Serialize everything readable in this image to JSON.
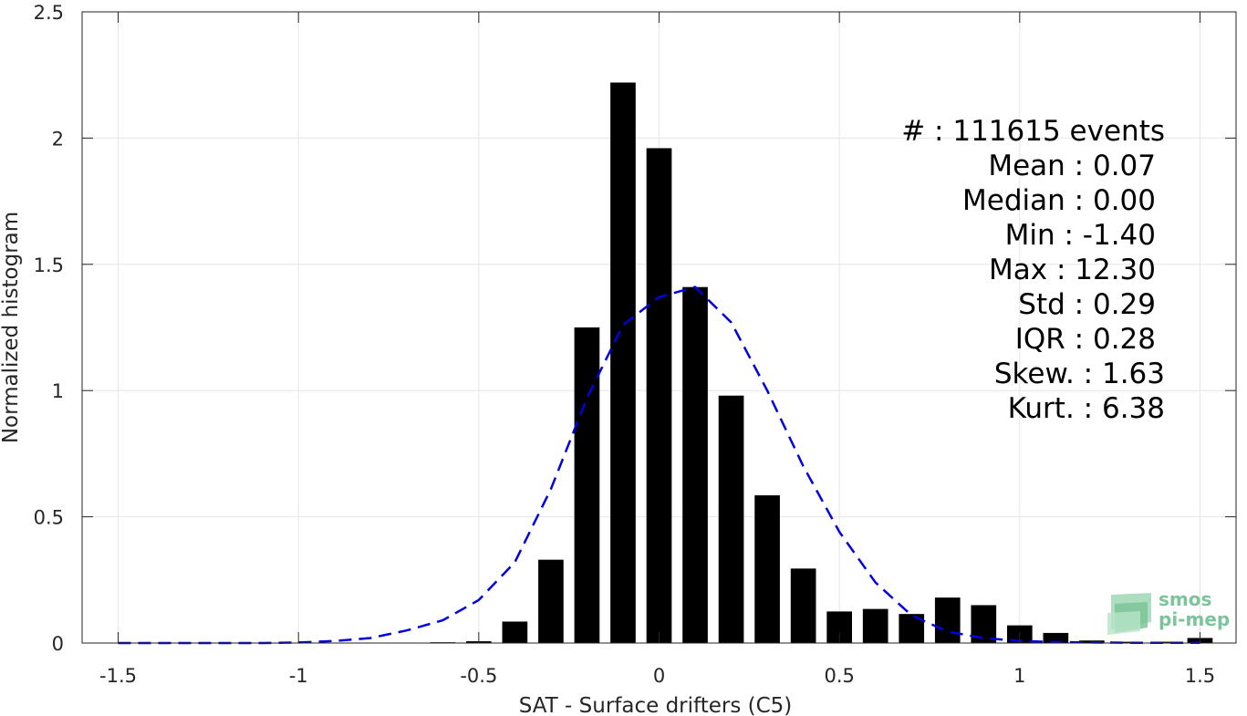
{
  "chart_data": {
    "type": "bar",
    "xlabel": "SAT - Surface drifters (C5)",
    "ylabel": "Normalized histogram",
    "xlim": [
      -1.6,
      1.6
    ],
    "ylim": [
      0,
      2.5
    ],
    "grid": true,
    "x_ticks": [
      -1.5,
      -1,
      -0.5,
      0,
      0.5,
      1,
      1.5
    ],
    "x_tick_labels": [
      "-1.5",
      "-1",
      "-0.5",
      "0",
      "0.5",
      "1",
      "1.5"
    ],
    "y_ticks": [
      0,
      0.5,
      1,
      1.5,
      2,
      2.5
    ],
    "y_tick_labels": [
      "0",
      "0.5",
      "1",
      "1.5",
      "2",
      "2.5"
    ],
    "bin_width": 0.07,
    "x": [
      -1.5,
      -1.4,
      -1.3,
      -1.2,
      -1.1,
      -1.0,
      -0.9,
      -0.8,
      -0.7,
      -0.6,
      -0.5,
      -0.4,
      -0.3,
      -0.2,
      -0.1,
      0.0,
      0.1,
      0.2,
      0.3,
      0.4,
      0.5,
      0.6,
      0.7,
      0.8,
      0.9,
      1.0,
      1.1,
      1.2,
      1.3,
      1.4,
      1.5
    ],
    "values": [
      0,
      0,
      0,
      0,
      0,
      0,
      0,
      0,
      0,
      0.003,
      0.007,
      0.085,
      0.33,
      1.25,
      2.22,
      1.96,
      1.41,
      0.98,
      0.585,
      0.295,
      0.125,
      0.135,
      0.115,
      0.18,
      0.15,
      0.07,
      0.04,
      0.01,
      0.005,
      0.005,
      0.02
    ],
    "fit_curve": {
      "style": "dashed",
      "color": "#0000e0",
      "x": [
        -1.5,
        -1.4,
        -1.3,
        -1.2,
        -1.1,
        -1.0,
        -0.9,
        -0.8,
        -0.7,
        -0.6,
        -0.5,
        -0.4,
        -0.3,
        -0.2,
        -0.1,
        0.0,
        0.1,
        0.2,
        0.3,
        0.4,
        0.5,
        0.6,
        0.7,
        0.8,
        0.9,
        1.0,
        1.1,
        1.2,
        1.3,
        1.4,
        1.5
      ],
      "y": [
        0,
        0,
        0,
        0,
        0,
        0.002,
        0.008,
        0.02,
        0.05,
        0.09,
        0.17,
        0.32,
        0.61,
        0.97,
        1.26,
        1.37,
        1.41,
        1.27,
        1.0,
        0.7,
        0.44,
        0.24,
        0.11,
        0.045,
        0.02,
        0.008,
        0.004,
        0.002,
        0.001,
        0.001,
        0.001
      ]
    },
    "bar_color": "#000000"
  },
  "stats": [
    {
      "label": "#",
      "sep": " : ",
      "value": "111615 events"
    },
    {
      "label": "Mean",
      "sep": " : ",
      "value": "0.07"
    },
    {
      "label": "Median",
      "sep": " : ",
      "value": "0.00"
    },
    {
      "label": "Min",
      "sep": " : ",
      "value": "-1.40"
    },
    {
      "label": "Max",
      "sep": " : ",
      "value": "12.30"
    },
    {
      "label": "Std",
      "sep": " : ",
      "value": "0.29"
    },
    {
      "label": "IQR",
      "sep": " : ",
      "value": "0.28"
    },
    {
      "label": "Skew.",
      "sep": " : ",
      "value": "1.63"
    },
    {
      "label": "Kurt.",
      "sep": " : ",
      "value": "6.38"
    }
  ],
  "logo": {
    "line1": "smos",
    "line2": "pi-mep",
    "color": "#7cc49a"
  }
}
